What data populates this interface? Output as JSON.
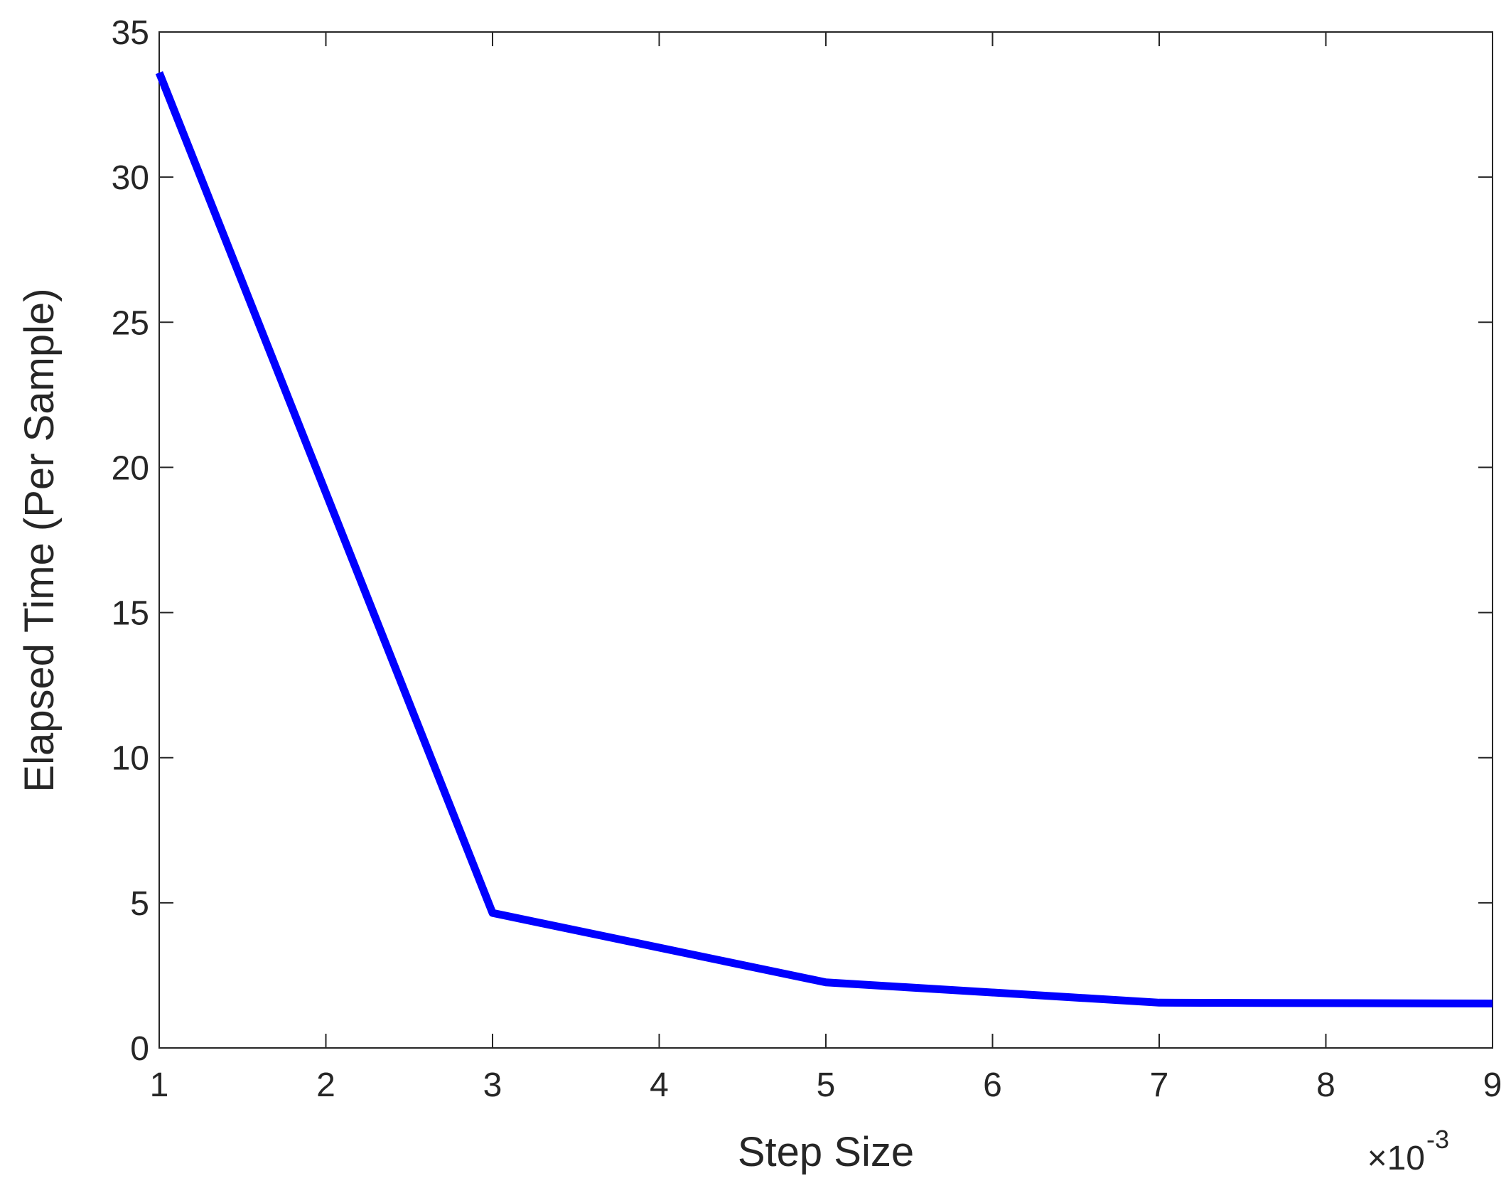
{
  "chart_data": {
    "type": "line",
    "xlabel": "Step Size",
    "ylabel": "Elapsed Time (Per Sample)",
    "x_scale_base": "×10",
    "x_scale_exponent": "-3",
    "x": [
      0.001,
      0.003,
      0.005,
      0.007,
      0.009
    ],
    "series": [
      {
        "color": "#0000ff",
        "values": [
          33.6,
          4.65,
          2.26,
          1.56,
          1.53
        ]
      }
    ],
    "xlim": [
      0.001,
      0.009
    ],
    "xticks": [
      {
        "value": 0.001,
        "label": "1"
      },
      {
        "value": 0.002,
        "label": "2"
      },
      {
        "value": 0.003,
        "label": "3"
      },
      {
        "value": 0.004,
        "label": "4"
      },
      {
        "value": 0.005,
        "label": "5"
      },
      {
        "value": 0.006,
        "label": "6"
      },
      {
        "value": 0.007,
        "label": "7"
      },
      {
        "value": 0.008,
        "label": "8"
      },
      {
        "value": 0.009,
        "label": "9"
      }
    ],
    "ylim": [
      0,
      35
    ],
    "yticks": [
      0,
      5,
      10,
      15,
      20,
      25,
      30,
      35
    ],
    "grid": false
  }
}
